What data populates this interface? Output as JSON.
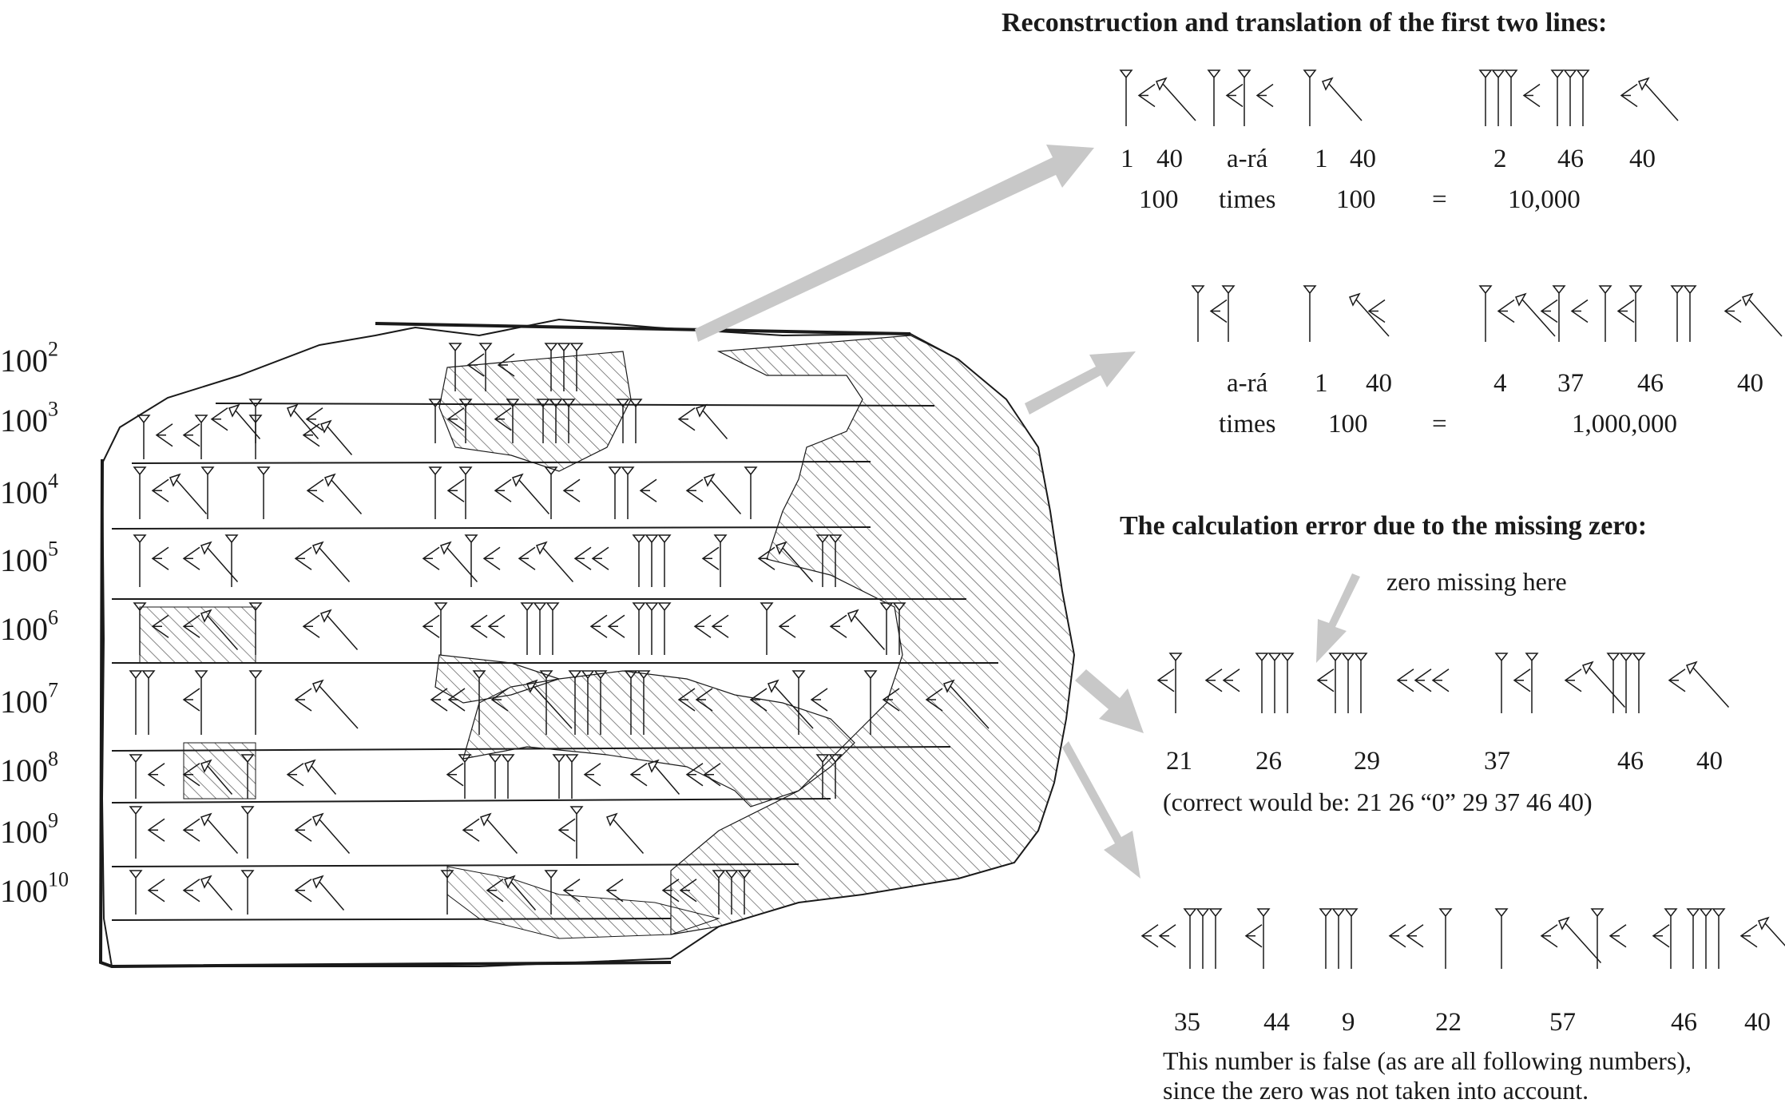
{
  "headings": {
    "reconstruction": "Reconstruction and translation of the first two lines:",
    "error": "The calculation error due to the missing zero:"
  },
  "powers": [
    {
      "base": "100",
      "exp": "2"
    },
    {
      "base": "100",
      "exp": "3"
    },
    {
      "base": "100",
      "exp": "4"
    },
    {
      "base": "100",
      "exp": "5"
    },
    {
      "base": "100",
      "exp": "6"
    },
    {
      "base": "100",
      "exp": "7"
    },
    {
      "base": "100",
      "exp": "8"
    },
    {
      "base": "100",
      "exp": "9"
    },
    {
      "base": "100",
      "exp": "10"
    }
  ],
  "line1": {
    "digits": [
      "1",
      "40",
      "a-rá",
      "1",
      "40",
      "2",
      "46",
      "40"
    ],
    "translation": [
      "100",
      "times",
      "100",
      "=",
      "10,000"
    ]
  },
  "line2": {
    "digits": [
      "a-rá",
      "1",
      "40",
      "4",
      "37",
      "46",
      "40"
    ],
    "translation": [
      "times",
      "100",
      "=",
      "1,000,000"
    ]
  },
  "error_example": {
    "zero_note": "zero missing here",
    "digits": [
      "21",
      "26",
      "29",
      "37",
      "46",
      "40"
    ],
    "correct": "(correct would be: 21 26 “0” 29 37 46 40)"
  },
  "false_example": {
    "digits": [
      "35",
      "44",
      "9",
      "22",
      "57",
      "46",
      "40"
    ],
    "note1": "This number is false (as are all following numbers),",
    "note2": "since the zero was not taken into account."
  },
  "colors": {
    "ink": "#1a1a1a",
    "arrow": "#c8c8c8",
    "hatch": "#555555"
  }
}
